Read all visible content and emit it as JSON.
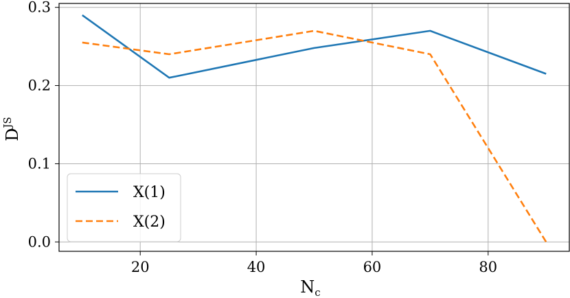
{
  "chart_data": {
    "type": "line",
    "x": [
      10,
      25,
      50,
      70,
      90
    ],
    "series": [
      {
        "name": "X(1)",
        "values": [
          0.29,
          0.21,
          0.248,
          0.27,
          0.215
        ],
        "color": "#1f77b4",
        "dash": "solid"
      },
      {
        "name": "X(2)",
        "values": [
          0.255,
          0.24,
          0.27,
          0.24,
          0.0
        ],
        "color": "#ff7f0e",
        "dash": "dashed"
      }
    ],
    "xlabel": "N",
    "xlabel_sub": "c",
    "ylabel": "D",
    "ylabel_sup": "JS",
    "xlim": [
      6,
      94
    ],
    "ylim": [
      -0.012,
      0.305
    ],
    "xticks": [
      20,
      40,
      60,
      80
    ],
    "xtick_labels": [
      "20",
      "40",
      "60",
      "80"
    ],
    "yticks": [
      0.0,
      0.1,
      0.2,
      0.3
    ],
    "ytick_labels": [
      "0.0",
      "0.1",
      "0.2",
      "0.3"
    ],
    "grid": true,
    "legend_position": "lower-left"
  }
}
